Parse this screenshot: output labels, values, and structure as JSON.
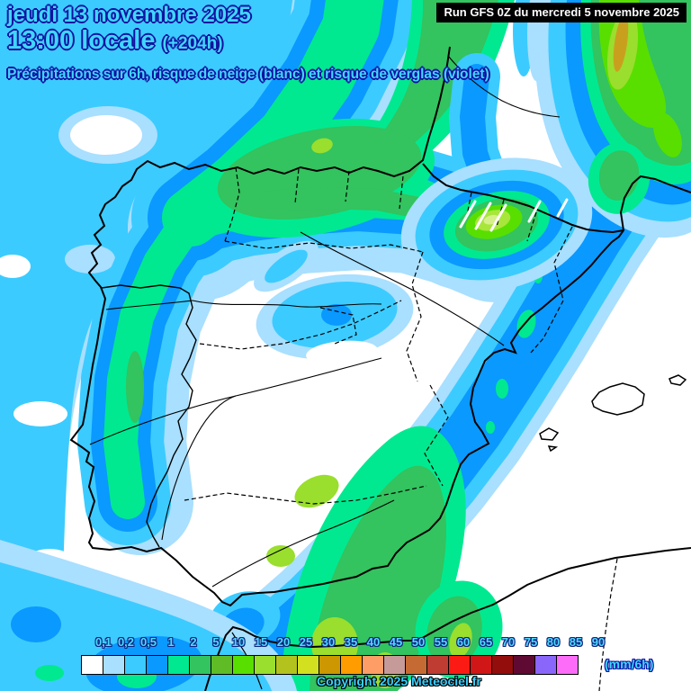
{
  "header": {
    "date_line": "jeudi 13 novembre 2025",
    "time_line": "13:00 locale",
    "time_offset": "(+204h)",
    "subtitle": "Précipitations sur 6h, risque de neige (blanc) et risque de verglas (violet)",
    "run_info": "Run GFS 0Z du mercredi 5 novembre 2025"
  },
  "legend": {
    "unit_label": "(mm/6h)",
    "ticks": [
      "0,1",
      "0,2",
      "0,5",
      "1",
      "2",
      "5",
      "10",
      "15",
      "20",
      "25",
      "30",
      "35",
      "40",
      "45",
      "50",
      "55",
      "60",
      "65",
      "70",
      "75",
      "80",
      "85",
      "90"
    ],
    "cell_colors": [
      "#FFFFFF",
      "#A9DFFF",
      "#3CCBFF",
      "#0A99FF",
      "#00E990",
      "#33C35F",
      "#5FBC26",
      "#58DF00",
      "#9ADE2E",
      "#B4C21E",
      "#D2E020",
      "#CC9700",
      "#FF9C00",
      "#FF9D66",
      "#C79A9A",
      "#C66A33",
      "#BE3C32",
      "#FC1B14",
      "#D01616",
      "#930D0D",
      "#5F0A32",
      "#8A66FB",
      "#FC6CF8"
    ]
  },
  "footer": {
    "copyright": "Copyright 2025 Meteociel.fr"
  },
  "colors": {
    "accent_text": "#3FD6FF",
    "text_outline": "#1212A0",
    "run_box_bg": "#000000",
    "run_box_text": "#FFFFFF"
  }
}
